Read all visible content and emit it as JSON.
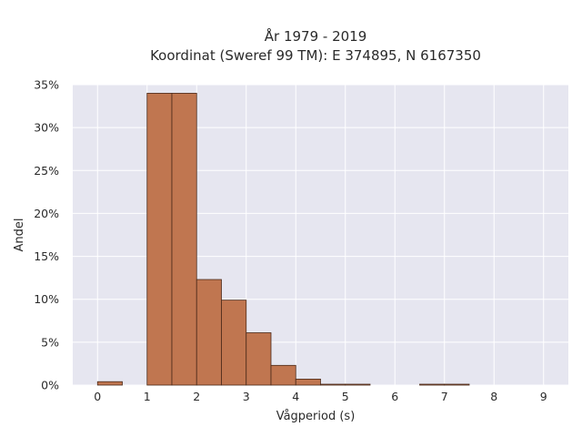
{
  "chart_data": {
    "type": "bar",
    "title_line1": "År 1979 - 2019",
    "title_line2": "Koordinat (Sweref 99 TM): E 374895, N 6167350",
    "xlabel": "Vågperiod (s)",
    "ylabel": "Andel",
    "xlim": [
      -0.5,
      9.5
    ],
    "ylim": [
      0,
      0.35
    ],
    "x_ticks": [
      "0",
      "1",
      "2",
      "3",
      "4",
      "5",
      "6",
      "7",
      "8",
      "9"
    ],
    "y_ticks": [
      "0%",
      "5%",
      "10%",
      "15%",
      "20%",
      "25%",
      "30%",
      "35%"
    ],
    "bin_width": 0.5,
    "bins": [
      {
        "x0": 0.0,
        "x1": 0.5,
        "value": 0.004
      },
      {
        "x0": 0.5,
        "x1": 1.0,
        "value": 0.0
      },
      {
        "x0": 1.0,
        "x1": 1.5,
        "value": 0.34
      },
      {
        "x0": 1.5,
        "x1": 2.0,
        "value": 0.34
      },
      {
        "x0": 2.0,
        "x1": 2.5,
        "value": 0.123
      },
      {
        "x0": 2.5,
        "x1": 3.0,
        "value": 0.099
      },
      {
        "x0": 3.0,
        "x1": 3.5,
        "value": 0.061
      },
      {
        "x0": 3.5,
        "x1": 4.0,
        "value": 0.023
      },
      {
        "x0": 4.0,
        "x1": 4.5,
        "value": 0.007
      },
      {
        "x0": 4.5,
        "x1": 5.0,
        "value": 0.0008
      },
      {
        "x0": 5.0,
        "x1": 5.5,
        "value": 0.0004
      },
      {
        "x0": 6.5,
        "x1": 7.0,
        "value": 0.0004
      },
      {
        "x0": 7.0,
        "x1": 7.5,
        "value": 0.0004
      }
    ],
    "grid": true,
    "colors": {
      "bar_fill": "#c07650",
      "bar_edge": "#4a2a1a",
      "plot_background": "#e6e6f0",
      "grid": "#ffffff"
    }
  }
}
